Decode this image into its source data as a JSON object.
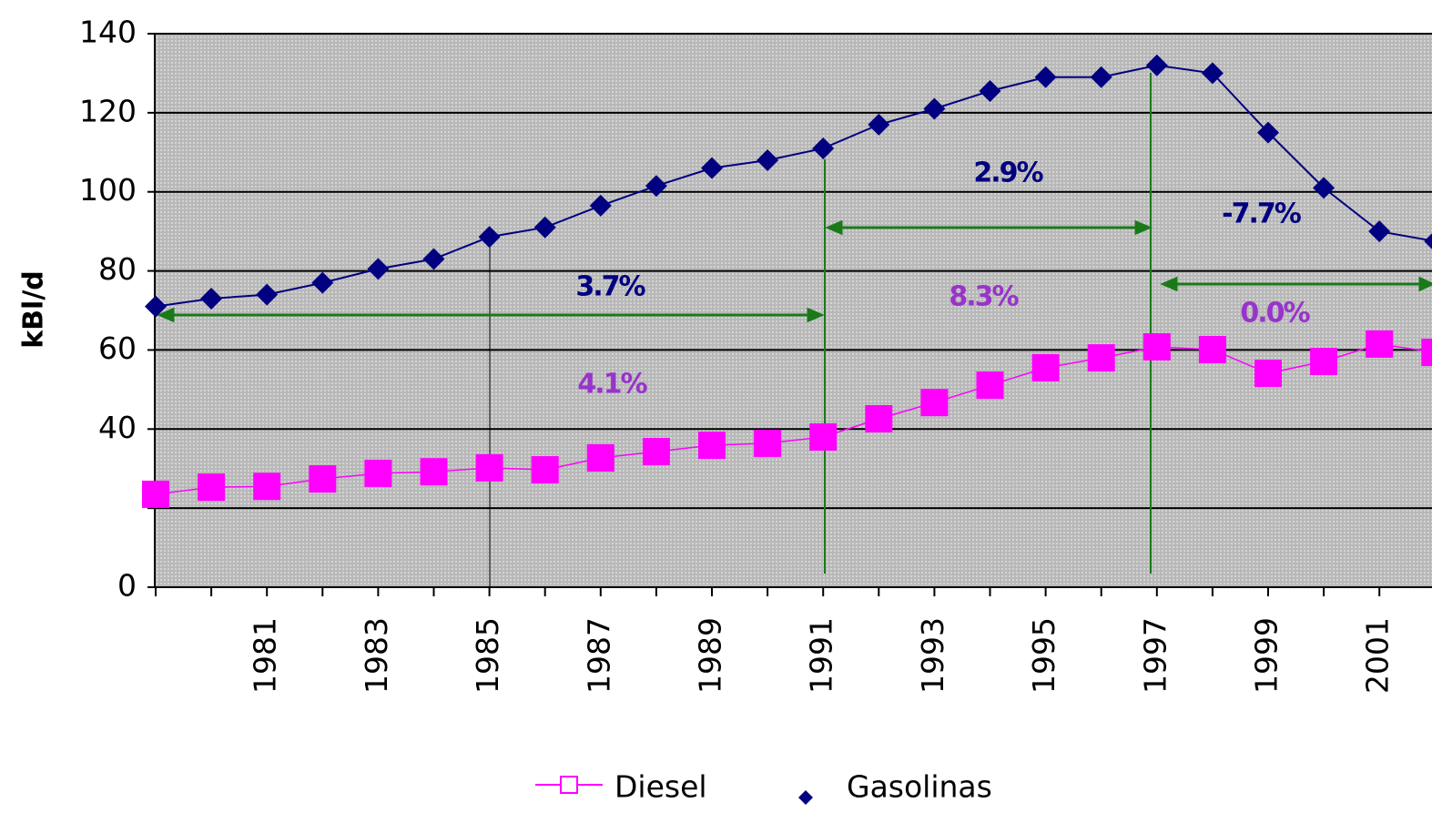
{
  "chart_data": {
    "type": "line",
    "y_label": "kBl/d",
    "categories": [
      null,
      null,
      "1981",
      null,
      "1983",
      null,
      "1985",
      null,
      "1987",
      null,
      "1989",
      null,
      "1991",
      null,
      "1993",
      null,
      "1995",
      null,
      "1997",
      null,
      "1999",
      null,
      "2001",
      null
    ],
    "series": [
      {
        "name": "Diesel",
        "color": "#ff00ff",
        "marker": "square",
        "values": [
          23.5,
          25.3,
          25.5,
          27.4,
          28.8,
          29.2,
          30.2,
          29.7,
          32.7,
          34.3,
          35.9,
          36.4,
          38,
          42.6,
          46.7,
          51.1,
          55.5,
          58,
          60.8,
          60.1,
          54.1,
          57.1,
          61.5,
          59.4
        ]
      },
      {
        "name": "Gasolinas",
        "color": "#000080",
        "marker": "diamond",
        "values": [
          71,
          73,
          74,
          77,
          80.5,
          83,
          88.6,
          91,
          96.5,
          101.5,
          106,
          108,
          111,
          117,
          121,
          125.5,
          129,
          129,
          132,
          130,
          115,
          101,
          90,
          87.5
        ]
      }
    ],
    "annotations": [
      {
        "text": "3.7%",
        "color": "#000080"
      },
      {
        "text": "4.1%",
        "color": "#9933cc"
      },
      {
        "text": "2.9%",
        "color": "#000080"
      },
      {
        "text": "8.3%",
        "color": "#9933cc"
      },
      {
        "text": "-7.7%",
        "color": "#000080"
      },
      {
        "text": "0.0%",
        "color": "#9933cc"
      }
    ],
    "ylim": [
      0,
      140
    ],
    "yticks": [
      0,
      {
        "value": 20,
        "label": null
      },
      40,
      60,
      80,
      100,
      120,
      140
    ],
    "grid": true
  }
}
